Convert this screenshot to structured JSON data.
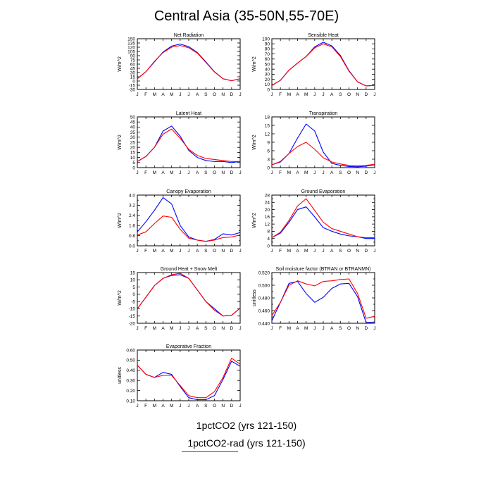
{
  "title": "Central Asia (35-50N,55-70E)",
  "legend": {
    "items": [
      {
        "label": "1pctCO2 (yrs 121-150)",
        "color": "#0000ff"
      },
      {
        "label": "1pctCO2-rad (yrs 121-150)",
        "color": "#ff0000"
      }
    ]
  },
  "chart_data": [
    {
      "type": "line",
      "title": "Net Radiation",
      "ylabel": "W/m^2",
      "categories": [
        "J",
        "F",
        "M",
        "A",
        "M",
        "J",
        "J",
        "A",
        "S",
        "O",
        "N",
        "D",
        "J"
      ],
      "ylim": [
        -30,
        150
      ],
      "yticks": [
        -30,
        -15,
        0,
        15,
        30,
        45,
        60,
        75,
        90,
        105,
        120,
        135,
        150
      ],
      "ytick_labels": [
        "-30",
        "-15",
        "0",
        "15",
        "30",
        "45",
        "60",
        "75",
        "90",
        "105",
        "120",
        "135",
        "150"
      ],
      "series": [
        {
          "color": "#0000ff",
          "values": [
            8,
            33,
            68,
            103,
            124,
            131,
            122,
            101,
            68,
            33,
            8,
            1,
            8
          ]
        },
        {
          "color": "#ff0000",
          "values": [
            8,
            33,
            70,
            101,
            120,
            126,
            118,
            99,
            66,
            32,
            8,
            1,
            8
          ]
        }
      ]
    },
    {
      "type": "line",
      "title": "Sensible Heat",
      "ylabel": "W/m^2",
      "categories": [
        "J",
        "F",
        "M",
        "A",
        "M",
        "J",
        "J",
        "A",
        "S",
        "O",
        "N",
        "D",
        "J"
      ],
      "ylim": [
        0,
        100
      ],
      "yticks": [
        0,
        10,
        20,
        30,
        40,
        50,
        60,
        70,
        80,
        90,
        100
      ],
      "ytick_labels": [
        "0",
        "10",
        "20",
        "30",
        "40",
        "50",
        "60",
        "70",
        "80",
        "90",
        "100"
      ],
      "series": [
        {
          "color": "#0000ff",
          "values": [
            8,
            18,
            38,
            52,
            65,
            84,
            93,
            86,
            67,
            37,
            15,
            7,
            8
          ]
        },
        {
          "color": "#ff0000",
          "values": [
            8,
            18,
            38,
            52,
            65,
            82,
            90,
            84,
            65,
            36,
            15,
            7,
            8
          ]
        }
      ]
    },
    {
      "type": "line",
      "title": "Latent Heat",
      "ylabel": "W/m^2",
      "categories": [
        "J",
        "F",
        "M",
        "A",
        "M",
        "J",
        "J",
        "A",
        "S",
        "O",
        "N",
        "D",
        "J"
      ],
      "ylim": [
        0,
        50
      ],
      "yticks": [
        0,
        5,
        10,
        15,
        20,
        25,
        30,
        35,
        40,
        45,
        50
      ],
      "ytick_labels": [
        "0",
        "5",
        "10",
        "15",
        "20",
        "25",
        "30",
        "35",
        "40",
        "45",
        "50"
      ],
      "series": [
        {
          "color": "#0000ff",
          "values": [
            6,
            11,
            20,
            36,
            41,
            31,
            17,
            10,
            7,
            6,
            6,
            5,
            6
          ]
        },
        {
          "color": "#ff0000",
          "values": [
            6,
            11,
            20,
            33,
            38,
            29,
            18,
            12,
            9,
            8,
            7,
            6,
            6
          ]
        }
      ]
    },
    {
      "type": "line",
      "title": "Transpiration",
      "ylabel": "W/m^2",
      "categories": [
        "J",
        "F",
        "M",
        "A",
        "M",
        "J",
        "J",
        "A",
        "S",
        "O",
        "N",
        "D",
        "J"
      ],
      "ylim": [
        0,
        18
      ],
      "yticks": [
        0,
        3,
        6,
        9,
        12,
        15,
        18
      ],
      "ytick_labels": [
        "0",
        "3",
        "6",
        "9",
        "12",
        "15",
        "18"
      ],
      "series": [
        {
          "color": "#0000ff",
          "values": [
            1,
            2,
            5,
            10.5,
            15.5,
            13,
            5.5,
            1.5,
            0.8,
            0.4,
            0.3,
            0.5,
            1
          ]
        },
        {
          "color": "#ff0000",
          "values": [
            1,
            2.2,
            5,
            7.5,
            9,
            6.5,
            3.5,
            2,
            1.3,
            0.8,
            0.6,
            0.8,
            1.2
          ]
        }
      ]
    },
    {
      "type": "line",
      "title": "Canopy Evaporation",
      "ylabel": "W/m^2",
      "categories": [
        "J",
        "F",
        "M",
        "A",
        "M",
        "J",
        "J",
        "A",
        "S",
        "O",
        "N",
        "D",
        "J"
      ],
      "ylim": [
        0,
        4
      ],
      "yticks": [
        0,
        0.4,
        0.8,
        1.2,
        1.6,
        2.0,
        2.4,
        2.8,
        3.2,
        3.6,
        4.0
      ],
      "ytick_labels": [
        "0.0",
        "",
        "0.8",
        "",
        "1.6",
        "",
        "2.4",
        "",
        "3.2",
        "",
        "4.0"
      ],
      "series": [
        {
          "color": "#0000ff",
          "values": [
            1.1,
            1.9,
            2.8,
            3.8,
            3.3,
            1.6,
            0.7,
            0.45,
            0.35,
            0.5,
            0.95,
            0.85,
            1.05
          ]
        },
        {
          "color": "#ff0000",
          "values": [
            0.85,
            1.1,
            1.75,
            2.35,
            2.25,
            1.3,
            0.6,
            0.45,
            0.35,
            0.45,
            0.65,
            0.7,
            0.85
          ]
        }
      ]
    },
    {
      "type": "line",
      "title": "Ground Evaporation",
      "ylabel": "W/m^2",
      "categories": [
        "J",
        "F",
        "M",
        "A",
        "M",
        "J",
        "J",
        "A",
        "S",
        "O",
        "N",
        "D",
        "J"
      ],
      "ylim": [
        0,
        28
      ],
      "yticks": [
        0,
        2,
        4,
        6,
        8,
        10,
        12,
        14,
        16,
        18,
        20,
        22,
        24,
        26,
        28
      ],
      "ytick_labels": [
        "0",
        "",
        "4",
        "",
        "8",
        "",
        "12",
        "",
        "16",
        "",
        "20",
        "",
        "24",
        "",
        "28"
      ],
      "series": [
        {
          "color": "#0000ff",
          "values": [
            4.5,
            7,
            13,
            20,
            21.5,
            16,
            10,
            8,
            6.5,
            5.5,
            5,
            4,
            4
          ]
        },
        {
          "color": "#ff0000",
          "values": [
            4.5,
            7.5,
            14,
            22,
            26,
            19.5,
            13,
            9.5,
            8,
            6.5,
            5,
            4.5,
            4.5
          ]
        }
      ]
    },
    {
      "type": "line",
      "title": "Ground Heat + Snow Melt",
      "ylabel": "W/m^2",
      "categories": [
        "J",
        "F",
        "M",
        "A",
        "M",
        "J",
        "J",
        "A",
        "S",
        "O",
        "N",
        "D",
        "J"
      ],
      "ylim": [
        -20,
        15
      ],
      "yticks": [
        -20,
        -15,
        -10,
        -5,
        0,
        5,
        10,
        15
      ],
      "ytick_labels": [
        "-20",
        "-15",
        "-10",
        "-5",
        "0",
        "5",
        "10",
        "15"
      ],
      "series": [
        {
          "color": "#0000ff",
          "values": [
            -10,
            -2,
            6,
            11,
            13,
            13.5,
            11,
            3,
            -5,
            -10,
            -15,
            -14.5,
            -9.5
          ]
        },
        {
          "color": "#ff0000",
          "values": [
            -10,
            -2,
            6,
            11,
            13.5,
            14.5,
            11,
            3,
            -5,
            -11,
            -15,
            -14.5,
            -9.5
          ]
        }
      ]
    },
    {
      "type": "line",
      "title": "Soil moisture factor (BTRAN or BTRANMN)",
      "ylabel": "unitless",
      "categories": [
        "J",
        "F",
        "M",
        "A",
        "M",
        "J",
        "J",
        "A",
        "S",
        "O",
        "N",
        "D",
        "J"
      ],
      "ylim": [
        0.44,
        0.52
      ],
      "yticks": [
        0.44,
        0.45,
        0.46,
        0.47,
        0.48,
        0.49,
        0.5,
        0.51,
        0.52
      ],
      "ytick_labels": [
        "0.440",
        "",
        "0.460",
        "",
        "0.480",
        "",
        "0.500",
        "",
        "0.520"
      ],
      "series": [
        {
          "color": "#0000ff",
          "values": [
            0.444,
            0.473,
            0.503,
            0.506,
            0.487,
            0.473,
            0.481,
            0.495,
            0.502,
            0.503,
            0.482,
            0.441,
            0.442
          ]
        },
        {
          "color": "#ff0000",
          "values": [
            0.452,
            0.473,
            0.5,
            0.507,
            0.502,
            0.499,
            0.506,
            0.507,
            0.509,
            0.51,
            0.487,
            0.448,
            0.451
          ]
        }
      ]
    },
    {
      "type": "line",
      "title": "Evaporative Fraction",
      "ylabel": "unitless",
      "categories": [
        "J",
        "F",
        "M",
        "A",
        "M",
        "J",
        "J",
        "A",
        "S",
        "O",
        "N",
        "D",
        "J"
      ],
      "ylim": [
        0.1,
        0.6
      ],
      "yticks": [
        0.1,
        0.2,
        0.3,
        0.4,
        0.5,
        0.6
      ],
      "ytick_labels": [
        "0.10",
        "0.20",
        "0.30",
        "0.40",
        "0.50",
        "0.60"
      ],
      "series": [
        {
          "color": "#0000ff",
          "values": [
            0.45,
            0.36,
            0.33,
            0.38,
            0.36,
            0.24,
            0.13,
            0.11,
            0.11,
            0.15,
            0.31,
            0.49,
            0.44
          ]
        },
        {
          "color": "#ff0000",
          "values": [
            0.45,
            0.36,
            0.33,
            0.35,
            0.35,
            0.25,
            0.15,
            0.13,
            0.13,
            0.19,
            0.33,
            0.52,
            0.46
          ]
        }
      ]
    }
  ]
}
